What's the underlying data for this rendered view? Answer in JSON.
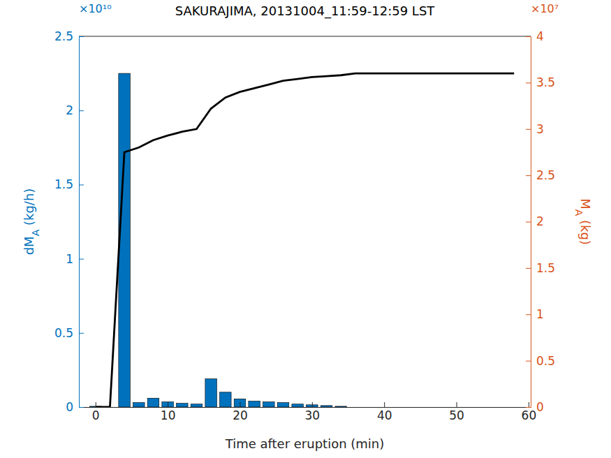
{
  "chart_data": {
    "type": "bar",
    "title": "SAKURAJIMA, 20131004_11:59-12:59 LST",
    "x_label": "Time after eruption (min)",
    "y_label": "dMA (kg/h)",
    "y2_label": "MA (kg)",
    "y_multiplier": "×10¹⁰",
    "y2_multiplier": "×10⁷",
    "x": [
      0,
      2,
      4,
      6,
      8,
      10,
      12,
      14,
      16,
      18,
      20,
      22,
      24,
      26,
      28,
      30,
      32,
      34,
      36,
      38,
      40,
      42,
      44,
      46,
      48,
      50,
      52,
      54,
      56,
      58
    ],
    "xlim": [
      -2.3,
      60.3
    ],
    "xticks": [
      0,
      10,
      20,
      30,
      40,
      50,
      60
    ],
    "ylim": [
      0,
      2.5
    ],
    "yticks": [
      0,
      0.5,
      1,
      1.5,
      2,
      2.5
    ],
    "y2lim": [
      0,
      4
    ],
    "y2ticks": [
      0,
      0.5,
      1,
      1.5,
      2,
      2.5,
      3,
      3.5,
      4
    ],
    "series": [
      {
        "type": "bar",
        "color": "#0072bd",
        "values": [
          0.005,
          0,
          2.25,
          0.03,
          0.06,
          0.035,
          0.025,
          0.02,
          0.19,
          0.1,
          0.055,
          0.04,
          0.035,
          0.03,
          0.02,
          0.015,
          0.01,
          0.005,
          0,
          0,
          0,
          0,
          0,
          0,
          0,
          0,
          0,
          0,
          0,
          0
        ]
      },
      {
        "type": "line",
        "color": "#000000",
        "axis": "y2",
        "values": [
          0,
          0,
          2.75,
          2.8,
          2.88,
          2.93,
          2.97,
          3.0,
          3.22,
          3.34,
          3.4,
          3.44,
          3.48,
          3.52,
          3.54,
          3.56,
          3.57,
          3.58,
          3.6,
          3.6,
          3.6,
          3.6,
          3.6,
          3.6,
          3.6,
          3.6,
          3.6,
          3.6,
          3.6,
          3.6
        ]
      }
    ]
  }
}
